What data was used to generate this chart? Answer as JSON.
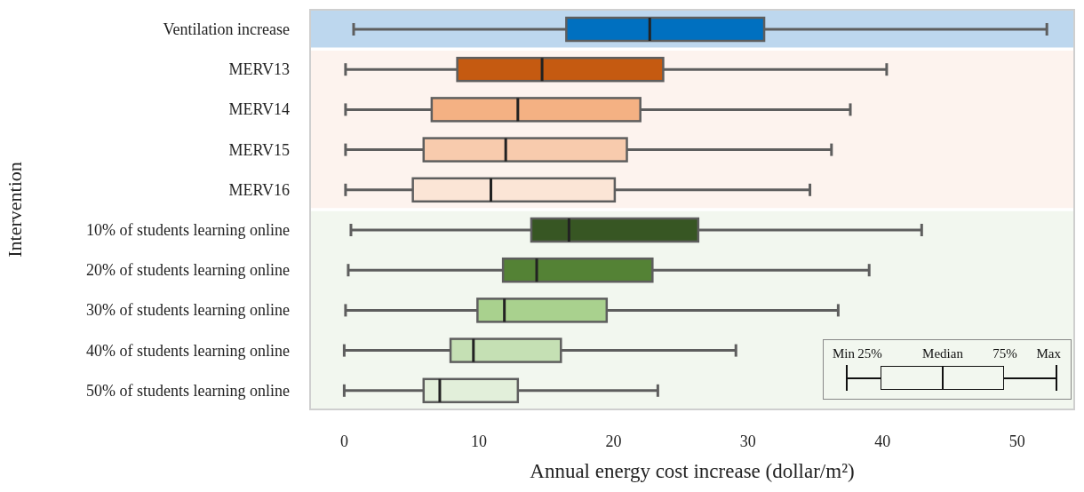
{
  "chart_data": {
    "type": "box",
    "orientation": "horizontal",
    "xlabel": "Annual energy cost increase (dollar/m²)",
    "ylabel": "Intervention",
    "categories": [
      "Ventilation increase",
      "MERV13",
      "MERV14",
      "MERV15",
      "MERV16",
      "10% of students learning online",
      "20% of students learning online",
      "30% of students learning online",
      "40% of students learning online",
      "50% of students learning online"
    ],
    "colors": [
      "#0070c0",
      "#c55a11",
      "#f4b183",
      "#f8cbad",
      "#fbe5d6",
      "#375623",
      "#548235",
      "#a9d18e",
      "#c5e0b4",
      "#e2efda"
    ],
    "boxes": [
      {
        "low": 0.7,
        "q1": 16.5,
        "median": 22.7,
        "q3": 31.2,
        "high": 52.2
      },
      {
        "low": 0.1,
        "q1": 8.4,
        "median": 14.7,
        "q3": 23.7,
        "high": 40.3
      },
      {
        "low": 0.1,
        "q1": 6.5,
        "median": 12.9,
        "q3": 22.0,
        "high": 37.6
      },
      {
        "low": 0.1,
        "q1": 5.9,
        "median": 12.0,
        "q3": 21.0,
        "high": 36.2
      },
      {
        "low": 0.1,
        "q1": 5.1,
        "median": 10.9,
        "q3": 20.1,
        "high": 34.6
      },
      {
        "low": 0.5,
        "q1": 13.9,
        "median": 16.7,
        "q3": 26.3,
        "high": 42.9
      },
      {
        "low": 0.3,
        "q1": 11.8,
        "median": 14.3,
        "q3": 22.9,
        "high": 39.0
      },
      {
        "low": 0.1,
        "q1": 9.9,
        "median": 11.9,
        "q3": 19.5,
        "high": 36.7
      },
      {
        "low": 0.0,
        "q1": 7.9,
        "median": 9.6,
        "q3": 16.1,
        "high": 29.1
      },
      {
        "low": 0.0,
        "q1": 5.9,
        "median": 7.1,
        "q3": 12.9,
        "high": 23.3
      }
    ],
    "xlim": [
      -2.6,
      54.3
    ],
    "xticks": [
      0,
      10,
      20,
      30,
      40,
      50
    ],
    "bands": [
      {
        "axis": "y",
        "from": "Ventilation increase",
        "to": "Ventilation increase",
        "color": "#bdd7ee"
      },
      {
        "axis": "y",
        "from": "MERV13",
        "to": "MERV16",
        "color": "#fdf3ee"
      },
      {
        "axis": "y",
        "from": "10% of students learning online",
        "to": "50% of students learning online",
        "color": "#f2f7ef"
      }
    ],
    "annotations": [
      "Min",
      "25%",
      "Median",
      "75%",
      "Max"
    ]
  }
}
